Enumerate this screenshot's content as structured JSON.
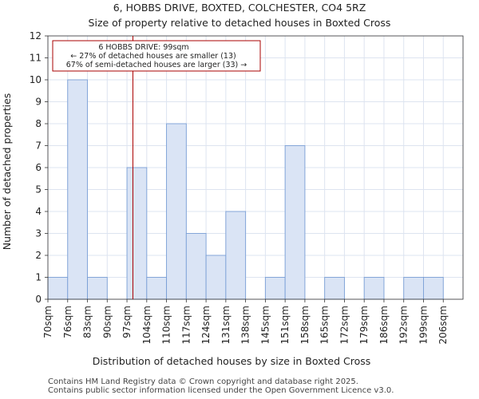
{
  "chart_data": {
    "type": "bar",
    "title": "6, HOBBS DRIVE, BOXTED, COLCHESTER, CO4 5RZ",
    "subtitle": "Size of property relative to detached houses in Boxted Cross",
    "xlabel": "Distribution of detached houses by size in Boxted Cross",
    "ylabel": "Number of detached properties",
    "categories": [
      "70sqm",
      "76sqm",
      "83sqm",
      "90sqm",
      "97sqm",
      "104sqm",
      "110sqm",
      "117sqm",
      "124sqm",
      "131sqm",
      "138sqm",
      "145sqm",
      "151sqm",
      "158sqm",
      "165sqm",
      "172sqm",
      "179sqm",
      "186sqm",
      "192sqm",
      "199sqm",
      "206sqm"
    ],
    "values": [
      1,
      10,
      1,
      0,
      6,
      1,
      8,
      3,
      2,
      4,
      0,
      1,
      7,
      0,
      1,
      0,
      1,
      0,
      1,
      1,
      0
    ],
    "ylim": [
      0,
      12
    ],
    "yticks": [
      0,
      1,
      2,
      3,
      4,
      5,
      6,
      7,
      8,
      9,
      10,
      11,
      12
    ],
    "grid": true,
    "marker": {
      "value_sqm": 99,
      "bin_position": 4.3
    },
    "annotation": {
      "line1": "6 HOBBS DRIVE: 99sqm",
      "line2": "← 27% of detached houses are smaller (13)",
      "line3": "67% of semi-detached houses are larger (33) →"
    },
    "colors": {
      "bar_fill": "#dae4f5",
      "bar_stroke": "#7a9fd6",
      "grid": "#dde4f0",
      "marker": "#aa0000"
    }
  },
  "footer": {
    "line1": "Contains HM Land Registry data © Crown copyright and database right 2025.",
    "line2": "Contains public sector information licensed under the Open Government Licence v3.0."
  }
}
